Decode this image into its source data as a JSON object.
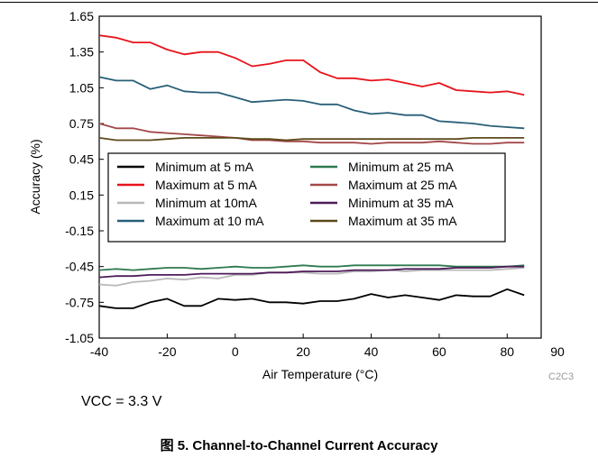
{
  "condition_note": "VCC = 3.3 V",
  "figure_caption": "图 5. Channel-to-Channel Current Accuracy",
  "chart_data": {
    "type": "line",
    "title": "",
    "xlabel": "Air Temperature (°C)",
    "ylabel": "Accuracy (%)",
    "xlim": [
      -40,
      90
    ],
    "ylim": [
      -1.05,
      1.65
    ],
    "x_ticks": [
      "-40",
      "-20",
      "0",
      "20",
      "40",
      "60",
      "80",
      "90"
    ],
    "y_ticks": [
      "1.65",
      "1.35",
      "1.05",
      "0.75",
      "0.45",
      "0.15",
      "-0.15",
      "-0.45",
      "-0.75",
      "-1.05"
    ],
    "grid": false,
    "legend_position": "center-left",
    "figure_code": "C2C3",
    "x": [
      -40,
      -35,
      -30,
      -25,
      -20,
      -15,
      -10,
      -5,
      0,
      5,
      10,
      15,
      20,
      25,
      30,
      35,
      40,
      45,
      50,
      55,
      60,
      65,
      70,
      75,
      80,
      85
    ],
    "series": [
      {
        "name": "Minimum at 5 mA",
        "color": "#000000",
        "values": [
          -0.78,
          -0.8,
          -0.8,
          -0.75,
          -0.72,
          -0.78,
          -0.78,
          -0.72,
          -0.73,
          -0.72,
          -0.75,
          -0.75,
          -0.76,
          -0.74,
          -0.74,
          -0.72,
          -0.68,
          -0.71,
          -0.69,
          -0.71,
          -0.73,
          -0.69,
          -0.7,
          -0.7,
          -0.64,
          -0.69
        ]
      },
      {
        "name": "Maximum at 5 mA",
        "color": "#e8141b",
        "values": [
          1.49,
          1.47,
          1.43,
          1.43,
          1.37,
          1.33,
          1.35,
          1.35,
          1.3,
          1.23,
          1.25,
          1.28,
          1.28,
          1.18,
          1.13,
          1.13,
          1.11,
          1.12,
          1.09,
          1.06,
          1.09,
          1.03,
          1.02,
          1.01,
          1.02,
          0.99
        ]
      },
      {
        "name": "Minimum at 10mA",
        "color": "#b8b8b8",
        "values": [
          -0.6,
          -0.61,
          -0.58,
          -0.57,
          -0.55,
          -0.56,
          -0.54,
          -0.55,
          -0.52,
          -0.52,
          -0.5,
          -0.5,
          -0.5,
          -0.51,
          -0.51,
          -0.49,
          -0.49,
          -0.48,
          -0.49,
          -0.48,
          -0.48,
          -0.48,
          -0.48,
          -0.48,
          -0.47,
          -0.46
        ]
      },
      {
        "name": "Maximum at 10 mA",
        "color": "#285f78",
        "values": [
          1.14,
          1.11,
          1.11,
          1.04,
          1.07,
          1.02,
          1.01,
          1.01,
          0.97,
          0.93,
          0.94,
          0.95,
          0.94,
          0.91,
          0.91,
          0.86,
          0.83,
          0.84,
          0.82,
          0.82,
          0.77,
          0.76,
          0.75,
          0.73,
          0.72,
          0.71
        ]
      },
      {
        "name": "Minimum at 25 mA",
        "color": "#2e7a50",
        "values": [
          -0.48,
          -0.47,
          -0.48,
          -0.47,
          -0.46,
          -0.46,
          -0.47,
          -0.46,
          -0.45,
          -0.46,
          -0.46,
          -0.45,
          -0.44,
          -0.45,
          -0.45,
          -0.44,
          -0.44,
          -0.44,
          -0.44,
          -0.44,
          -0.44,
          -0.45,
          -0.45,
          -0.45,
          -0.45,
          -0.44
        ]
      },
      {
        "name": "Maximum at 25 mA",
        "color": "#a3484a",
        "values": [
          0.75,
          0.71,
          0.71,
          0.68,
          0.67,
          0.66,
          0.65,
          0.64,
          0.63,
          0.61,
          0.61,
          0.6,
          0.6,
          0.59,
          0.59,
          0.59,
          0.58,
          0.59,
          0.59,
          0.59,
          0.6,
          0.59,
          0.58,
          0.58,
          0.59,
          0.59
        ]
      },
      {
        "name": "Minimum at 35 mA",
        "color": "#4e1b59",
        "values": [
          -0.54,
          -0.53,
          -0.53,
          -0.52,
          -0.52,
          -0.52,
          -0.51,
          -0.51,
          -0.51,
          -0.51,
          -0.5,
          -0.5,
          -0.49,
          -0.49,
          -0.49,
          -0.48,
          -0.48,
          -0.48,
          -0.47,
          -0.47,
          -0.47,
          -0.46,
          -0.46,
          -0.46,
          -0.45,
          -0.45
        ]
      },
      {
        "name": "Maximum at 35 mA",
        "color": "#5c4a1b",
        "values": [
          0.63,
          0.61,
          0.61,
          0.61,
          0.62,
          0.63,
          0.63,
          0.63,
          0.63,
          0.62,
          0.62,
          0.61,
          0.62,
          0.62,
          0.62,
          0.62,
          0.62,
          0.62,
          0.62,
          0.62,
          0.62,
          0.62,
          0.63,
          0.63,
          0.63,
          0.63
        ]
      }
    ]
  }
}
